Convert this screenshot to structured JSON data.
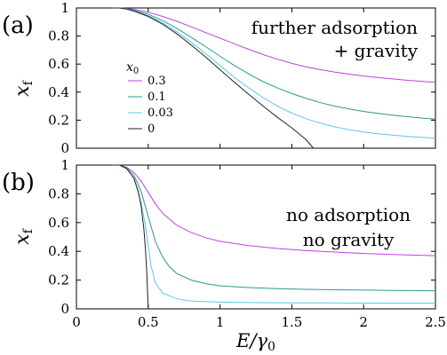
{
  "chart_data": [
    {
      "type": "line",
      "panel_label": "(a)",
      "ylabel": "x",
      "ylabel_sub": "f",
      "ylim": [
        0,
        1
      ],
      "xlim": [
        0,
        2.5
      ],
      "ytick_labels": [
        "0",
        "0.2",
        "0.4",
        "0.6",
        "0.8",
        "1"
      ],
      "annotation_lines": [
        "further adsorption",
        "+ gravity"
      ],
      "legend": {
        "title": "x",
        "title_sub": "0",
        "placement": "center-left"
      },
      "series": [
        {
          "name": "0.3",
          "color": "#c040e0",
          "x": [
            0.25,
            0.3,
            0.35,
            0.4,
            0.5,
            0.6,
            0.7,
            0.8,
            0.9,
            1.0,
            1.1,
            1.2,
            1.3,
            1.4,
            1.5,
            1.6,
            1.7,
            1.8,
            1.9,
            2.0,
            2.1,
            2.2,
            2.3,
            2.4,
            2.5
          ],
          "y": [
            1.0,
            1.0,
            0.997,
            0.99,
            0.97,
            0.94,
            0.905,
            0.865,
            0.825,
            0.785,
            0.745,
            0.705,
            0.668,
            0.635,
            0.605,
            0.58,
            0.56,
            0.543,
            0.528,
            0.515,
            0.504,
            0.494,
            0.485,
            0.477,
            0.47
          ]
        },
        {
          "name": "0.1",
          "color": "#2a9a8a",
          "x": [
            0.25,
            0.3,
            0.35,
            0.4,
            0.5,
            0.6,
            0.7,
            0.8,
            0.9,
            1.0,
            1.1,
            1.2,
            1.3,
            1.4,
            1.5,
            1.6,
            1.7,
            1.8,
            1.9,
            2.0,
            2.1,
            2.2,
            2.3,
            2.4,
            2.5
          ],
          "y": [
            1.0,
            1.0,
            0.995,
            0.985,
            0.955,
            0.91,
            0.855,
            0.79,
            0.725,
            0.655,
            0.59,
            0.53,
            0.475,
            0.43,
            0.39,
            0.355,
            0.325,
            0.3,
            0.28,
            0.262,
            0.248,
            0.236,
            0.225,
            0.215,
            0.207
          ]
        },
        {
          "name": "0.03",
          "color": "#5ac8e8",
          "x": [
            0.25,
            0.3,
            0.35,
            0.4,
            0.5,
            0.6,
            0.7,
            0.8,
            0.9,
            1.0,
            1.1,
            1.2,
            1.3,
            1.4,
            1.5,
            1.6,
            1.7,
            1.8,
            1.9,
            2.0,
            2.1,
            2.2,
            2.3,
            2.4,
            2.5
          ],
          "y": [
            1.0,
            1.0,
            0.993,
            0.98,
            0.945,
            0.895,
            0.83,
            0.755,
            0.675,
            0.59,
            0.505,
            0.43,
            0.36,
            0.3,
            0.25,
            0.21,
            0.178,
            0.152,
            0.132,
            0.116,
            0.103,
            0.093,
            0.085,
            0.078,
            0.072
          ]
        },
        {
          "name": "0",
          "color": "#222222",
          "x": [
            0.25,
            0.3,
            0.35,
            0.4,
            0.5,
            0.6,
            0.7,
            0.8,
            0.9,
            1.0,
            1.1,
            1.2,
            1.3,
            1.4,
            1.5,
            1.6,
            1.65
          ],
          "y": [
            1.0,
            1.0,
            0.992,
            0.978,
            0.94,
            0.885,
            0.815,
            0.735,
            0.65,
            0.56,
            0.47,
            0.385,
            0.3,
            0.22,
            0.145,
            0.06,
            0.0
          ]
        }
      ]
    },
    {
      "type": "line",
      "panel_label": "(b)",
      "xlabel": "E/γ",
      "xlabel_sub": "0",
      "ylabel": "x",
      "ylabel_sub": "f",
      "ylim": [
        0,
        1
      ],
      "xlim": [
        0,
        2.5
      ],
      "xtick_labels": [
        "0",
        "0.5",
        "1",
        "1.5",
        "2",
        "2.5"
      ],
      "ytick_labels": [
        "0",
        "0.2",
        "0.4",
        "0.6",
        "0.8",
        "1"
      ],
      "annotation_lines": [
        "no adsorption",
        "no gravity"
      ],
      "series": [
        {
          "name": "0.3",
          "color": "#c040e0",
          "x": [
            0.25,
            0.3,
            0.35,
            0.4,
            0.45,
            0.5,
            0.55,
            0.6,
            0.7,
            0.8,
            0.9,
            1.0,
            1.2,
            1.4,
            1.6,
            1.8,
            2.0,
            2.2,
            2.5
          ],
          "y": [
            1.0,
            1.0,
            0.985,
            0.95,
            0.89,
            0.81,
            0.73,
            0.665,
            0.58,
            0.53,
            0.495,
            0.47,
            0.44,
            0.42,
            0.405,
            0.395,
            0.385,
            0.378,
            0.37
          ]
        },
        {
          "name": "0.1",
          "color": "#2a9a8a",
          "x": [
            0.25,
            0.3,
            0.35,
            0.4,
            0.45,
            0.5,
            0.55,
            0.6,
            0.65,
            0.7,
            0.8,
            0.9,
            1.0,
            1.2,
            1.4,
            1.6,
            1.8,
            2.0,
            2.2,
            2.5
          ],
          "y": [
            1.0,
            1.0,
            0.98,
            0.93,
            0.82,
            0.64,
            0.47,
            0.36,
            0.29,
            0.245,
            0.2,
            0.175,
            0.16,
            0.148,
            0.14,
            0.136,
            0.133,
            0.13,
            0.128,
            0.126
          ]
        },
        {
          "name": "0.03",
          "color": "#5ac8e8",
          "x": [
            0.25,
            0.3,
            0.35,
            0.4,
            0.45,
            0.48,
            0.5,
            0.52,
            0.55,
            0.6,
            0.7,
            0.8,
            0.9,
            1.0,
            1.2,
            1.5,
            2.0,
            2.5
          ],
          "y": [
            1.0,
            1.0,
            0.975,
            0.91,
            0.74,
            0.58,
            0.44,
            0.3,
            0.18,
            0.11,
            0.07,
            0.055,
            0.05,
            0.047,
            0.044,
            0.042,
            0.04,
            0.04
          ]
        },
        {
          "name": "0",
          "color": "#222222",
          "x": [
            0.25,
            0.3,
            0.35,
            0.4,
            0.43,
            0.45,
            0.47,
            0.48,
            0.49,
            0.5
          ],
          "y": [
            1.0,
            1.0,
            0.975,
            0.91,
            0.82,
            0.72,
            0.55,
            0.42,
            0.25,
            0.0
          ]
        }
      ]
    }
  ]
}
